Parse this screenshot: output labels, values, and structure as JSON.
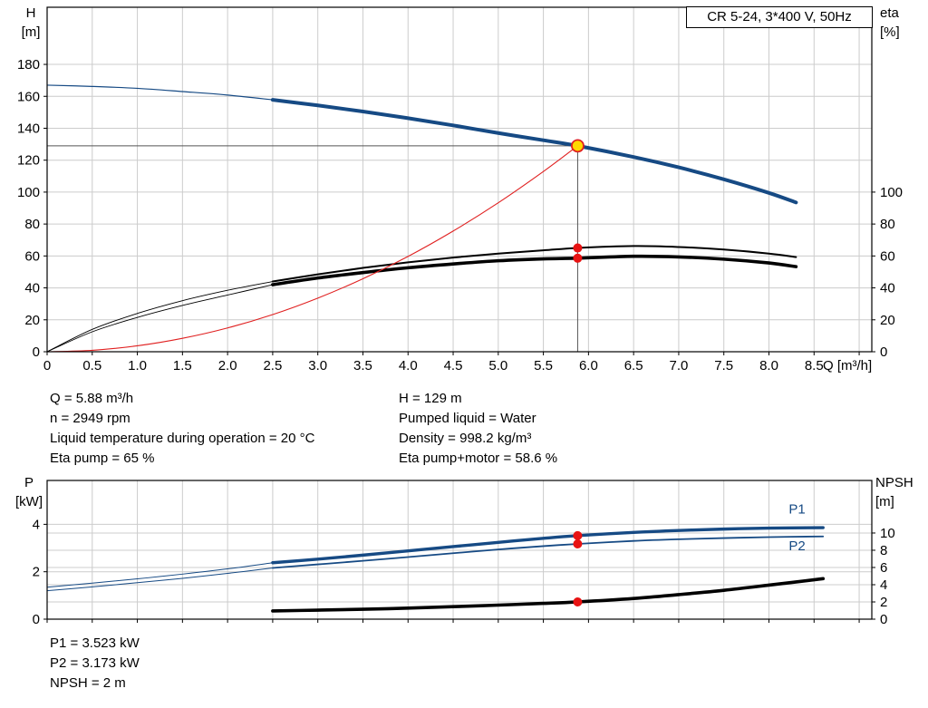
{
  "panel": {
    "title": "CR 5-24, 3*400 V, 50Hz"
  },
  "colors": {
    "pump_curve": "#164a84",
    "eta_curve": "#000000",
    "system_curve": "#e02020",
    "marker_fill": "#ffd800",
    "marker_stroke": "#e02020",
    "duty_dot": "#e81313",
    "grid": "#cccccc",
    "axis": "#000000",
    "crosshair": "#555555",
    "series_label": "#164a84"
  },
  "info": {
    "left": [
      "Q = 5.88 m³/h",
      "n = 2949 rpm",
      "Liquid temperature during operation = 20 °C",
      "Eta pump = 65 %"
    ],
    "right": [
      "H = 129 m",
      "Pumped liquid = Water",
      "Density = 998.2 kg/m³",
      "Eta pump+motor = 58.6 %"
    ],
    "bottom": [
      "P1 = 3.523 kW",
      "P2 = 3.173 kW",
      "NPSH = 2 m"
    ]
  },
  "chart_data": [
    {
      "type": "line",
      "name": "hq-eta-chart",
      "title": "CR 5-24, 3*400 V, 50Hz",
      "x_label": "Q [m³/h]",
      "y_left_label": [
        "H",
        "[m]"
      ],
      "y_right_label": [
        "eta",
        "[%]"
      ],
      "x_range": [
        0,
        9.14
      ],
      "y_left_range": [
        0,
        215.8
      ],
      "y_right_range": [
        0,
        215.8
      ],
      "x_ticks": [
        0,
        0.5,
        1,
        1.5,
        2,
        2.5,
        3,
        3.5,
        4,
        4.5,
        5,
        5.5,
        6,
        6.5,
        7,
        7.5,
        8,
        8.5,
        9
      ],
      "x_tick_labels": [
        "0",
        "0.5",
        "1.0",
        "1.5",
        "2.0",
        "2.5",
        "3.0",
        "3.5",
        "4.0",
        "4.5",
        "5.0",
        "5.5",
        "6.0",
        "6.5",
        "7.0",
        "7.5",
        "8.0",
        "8.5",
        ""
      ],
      "y_left_ticks": [
        0,
        20,
        40,
        60,
        80,
        100,
        120,
        140,
        160,
        180
      ],
      "y_right_ticks": [
        0,
        20,
        40,
        60,
        80,
        100
      ],
      "grid_right": false,
      "series": [
        {
          "name": "pump-curve",
          "color": "#164a84",
          "width": 4,
          "thin_width": 1.2,
          "split": 2.5,
          "axis": "left",
          "points": [
            [
              0,
              167
            ],
            [
              0.5,
              166.2
            ],
            [
              1,
              165
            ],
            [
              1.5,
              163
            ],
            [
              2,
              160.8
            ],
            [
              2.5,
              157.8
            ],
            [
              3,
              154.3
            ],
            [
              3.5,
              150.5
            ],
            [
              4,
              146.3
            ],
            [
              4.5,
              141.8
            ],
            [
              5,
              137
            ],
            [
              5.5,
              132.5
            ],
            [
              5.88,
              129
            ],
            [
              6.5,
              122
            ],
            [
              7,
              115.5
            ],
            [
              7.5,
              108
            ],
            [
              8,
              99.5
            ],
            [
              8.3,
              93.5
            ]
          ]
        },
        {
          "name": "eta-pump-curve",
          "color": "#000000",
          "width": 2,
          "thin_width": 0.9,
          "split": 2.5,
          "axis": "right",
          "points": [
            [
              0,
              0
            ],
            [
              0.5,
              14
            ],
            [
              1,
              24
            ],
            [
              1.5,
              32
            ],
            [
              2,
              38.5
            ],
            [
              2.5,
              44
            ],
            [
              3,
              48.5
            ],
            [
              3.5,
              52.5
            ],
            [
              4,
              56
            ],
            [
              4.5,
              59
            ],
            [
              5,
              61.5
            ],
            [
              5.5,
              63.5
            ],
            [
              5.88,
              65
            ],
            [
              6.5,
              66.2
            ],
            [
              7,
              65.6
            ],
            [
              7.5,
              64
            ],
            [
              8,
              61.5
            ],
            [
              8.3,
              59.3
            ]
          ]
        },
        {
          "name": "eta-pump-motor-curve",
          "color": "#000000",
          "width": 3.6,
          "thin_width": 0.9,
          "split": 2.5,
          "axis": "right",
          "points": [
            [
              0,
              0
            ],
            [
              0.5,
              12.5
            ],
            [
              1,
              21.5
            ],
            [
              1.5,
              29
            ],
            [
              2,
              35.5
            ],
            [
              2.5,
              42
            ],
            [
              3,
              46.2
            ],
            [
              3.5,
              49.6
            ],
            [
              4,
              52.6
            ],
            [
              4.5,
              55
            ],
            [
              5,
              57
            ],
            [
              5.5,
              58.2
            ],
            [
              5.88,
              58.6
            ],
            [
              6.5,
              59.8
            ],
            [
              7,
              59.4
            ],
            [
              7.5,
              58
            ],
            [
              8,
              55.6
            ],
            [
              8.3,
              53.3
            ]
          ]
        },
        {
          "name": "system-curve",
          "color": "#e02020",
          "width": 1.1,
          "axis": "left",
          "points": [
            [
              0,
              0
            ],
            [
              0.5,
              0.9
            ],
            [
              1,
              3.7
            ],
            [
              1.5,
              8.4
            ],
            [
              2,
              14.9
            ],
            [
              2.5,
              23.3
            ],
            [
              3,
              33.6
            ],
            [
              3.5,
              45.7
            ],
            [
              4,
              59.7
            ],
            [
              4.5,
              75.6
            ],
            [
              5,
              93.3
            ],
            [
              5.5,
              112.9
            ],
            [
              5.88,
              129
            ]
          ]
        }
      ],
      "crosshair": {
        "x": 5.88,
        "y": 129
      },
      "operating_point": {
        "x": 5.88,
        "y": 129,
        "fill": "#ffd800",
        "stroke": "#e02020"
      },
      "duty_dots": [
        {
          "x": 5.88,
          "y": 65,
          "axis": "right"
        },
        {
          "x": 5.88,
          "y": 58.6,
          "axis": "right"
        }
      ]
    },
    {
      "type": "line",
      "name": "power-npsh-chart",
      "x_label": "",
      "y_left_label": [
        "P",
        "[kW]"
      ],
      "y_right_label": [
        "NPSH",
        "[m]"
      ],
      "x_range": [
        0,
        9.14
      ],
      "y_left_range": [
        0,
        5.85
      ],
      "y_right_range": [
        0,
        16.1
      ],
      "x_ticks": [
        0,
        0.5,
        1,
        1.5,
        2,
        2.5,
        3,
        3.5,
        4,
        4.5,
        5,
        5.5,
        6,
        6.5,
        7,
        7.5,
        8,
        8.5,
        9
      ],
      "y_left_ticks": [
        0,
        2,
        4
      ],
      "y_right_ticks": [
        0,
        2,
        4,
        6,
        8,
        10
      ],
      "grid_right": true,
      "series": [
        {
          "name": "p1-curve",
          "color": "#164a84",
          "width": 3.4,
          "thin_width": 1,
          "split": 2.5,
          "axis": "left",
          "points": [
            [
              0,
              1.35
            ],
            [
              0.5,
              1.52
            ],
            [
              1,
              1.7
            ],
            [
              1.5,
              1.9
            ],
            [
              2,
              2.12
            ],
            [
              2.5,
              2.38
            ],
            [
              3,
              2.53
            ],
            [
              3.5,
              2.7
            ],
            [
              4,
              2.88
            ],
            [
              4.5,
              3.06
            ],
            [
              5,
              3.24
            ],
            [
              5.5,
              3.41
            ],
            [
              5.88,
              3.523
            ],
            [
              6.5,
              3.66
            ],
            [
              7,
              3.74
            ],
            [
              7.5,
              3.8
            ],
            [
              8,
              3.84
            ],
            [
              8.6,
              3.86
            ]
          ]
        },
        {
          "name": "p2-curve",
          "color": "#164a84",
          "width": 1.8,
          "thin_width": 1,
          "split": 2.5,
          "axis": "left",
          "points": [
            [
              0,
              1.2
            ],
            [
              0.5,
              1.36
            ],
            [
              1,
              1.54
            ],
            [
              1.5,
              1.72
            ],
            [
              2,
              1.93
            ],
            [
              2.5,
              2.16
            ],
            [
              3,
              2.31
            ],
            [
              3.5,
              2.46
            ],
            [
              4,
              2.62
            ],
            [
              4.5,
              2.78
            ],
            [
              5,
              2.94
            ],
            [
              5.5,
              3.08
            ],
            [
              5.88,
              3.173
            ],
            [
              6.5,
              3.3
            ],
            [
              7,
              3.37
            ],
            [
              7.5,
              3.42
            ],
            [
              8,
              3.46
            ],
            [
              8.6,
              3.49
            ]
          ]
        },
        {
          "name": "npsh-curve",
          "color": "#000000",
          "width": 3.6,
          "axis": "right",
          "points": [
            [
              2.5,
              0.95
            ],
            [
              3,
              1.05
            ],
            [
              3.5,
              1.15
            ],
            [
              4,
              1.28
            ],
            [
              4.5,
              1.45
            ],
            [
              5,
              1.63
            ],
            [
              5.5,
              1.83
            ],
            [
              5.88,
              2.0
            ],
            [
              6.5,
              2.4
            ],
            [
              7,
              2.85
            ],
            [
              7.5,
              3.35
            ],
            [
              8,
              3.95
            ],
            [
              8.6,
              4.7
            ]
          ]
        }
      ],
      "duty_dots": [
        {
          "x": 5.88,
          "y": 3.523,
          "axis": "left"
        },
        {
          "x": 5.88,
          "y": 3.173,
          "axis": "left"
        },
        {
          "x": 5.88,
          "y": 2.0,
          "axis": "right"
        }
      ],
      "series_labels": [
        {
          "text": "P1",
          "x": 8.22,
          "y": 4.45,
          "color": "#164a84"
        },
        {
          "text": "P2",
          "x": 8.22,
          "y": 2.9,
          "color": "#164a84"
        }
      ]
    }
  ]
}
